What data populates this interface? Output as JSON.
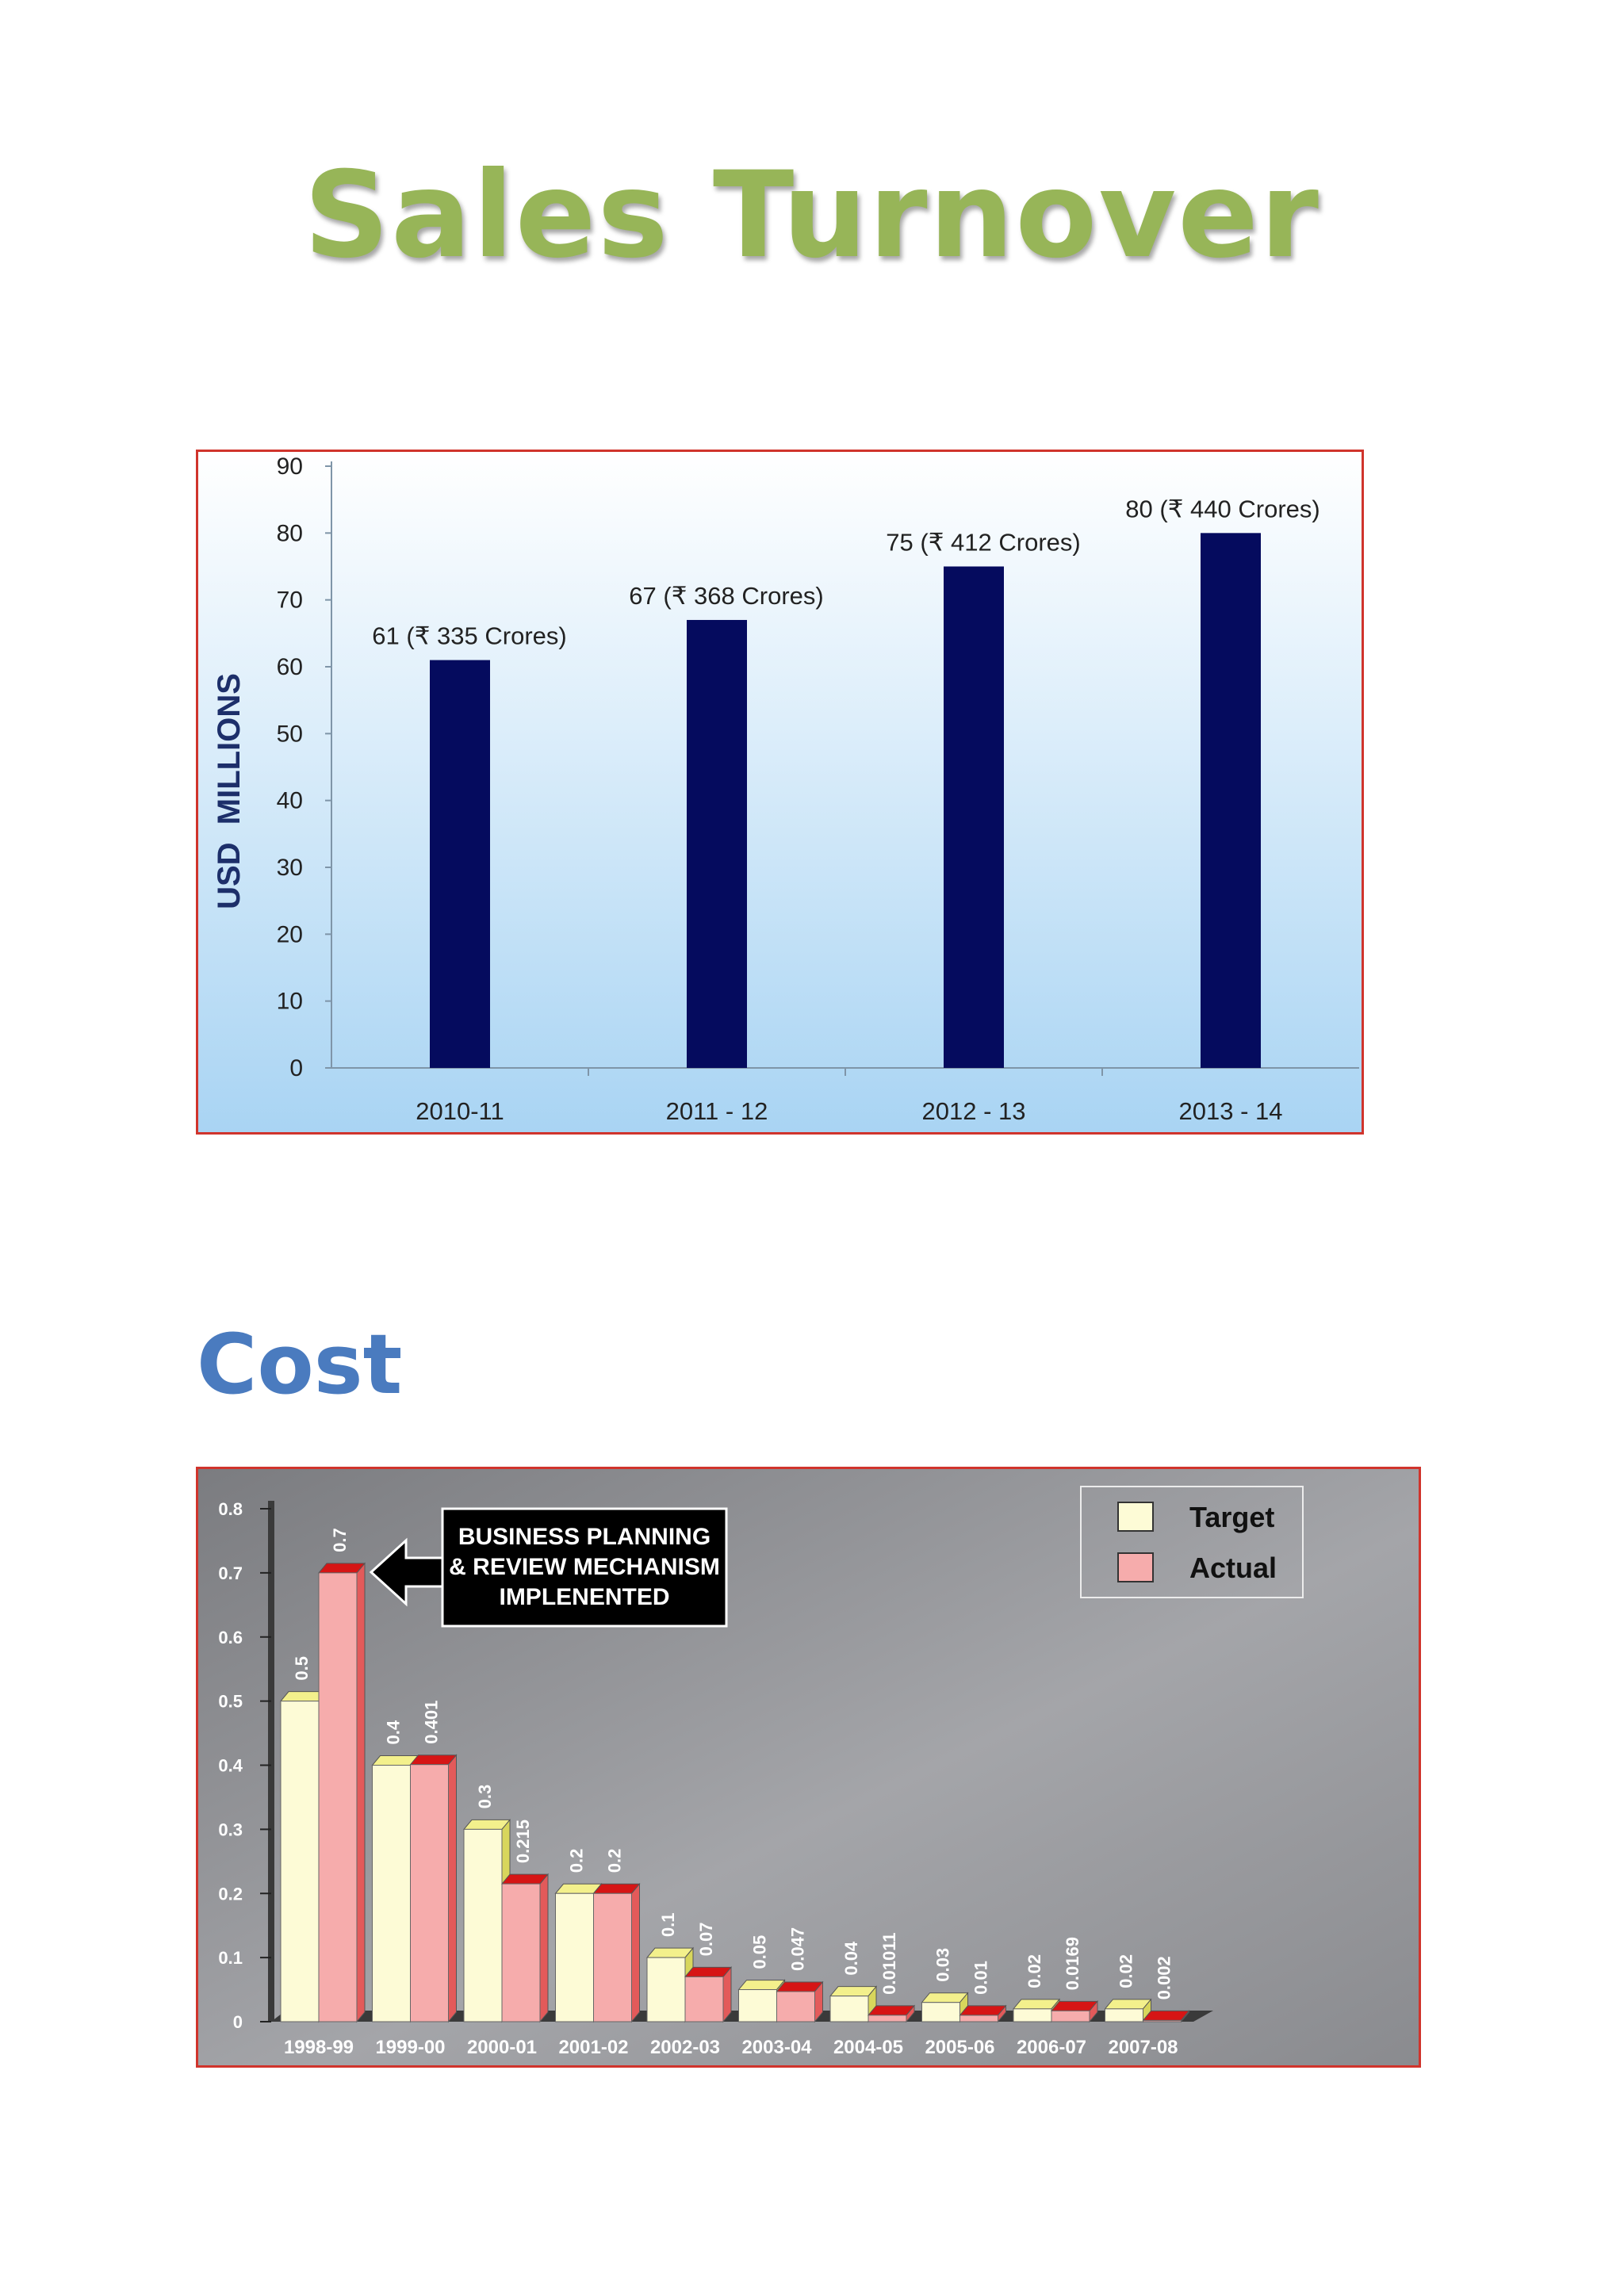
{
  "page": {
    "title": "Sales Turnover",
    "section_title": "Cost"
  },
  "colors": {
    "title": "#97b558",
    "section_title": "#4a7bbf",
    "frame": "#d0342c",
    "sales_bar": "#050b5e",
    "sales_bg_top": "#ffffff",
    "sales_bg_bottom": "#a9d4f3",
    "cost_bg": "#8c8d91",
    "target_face": "#fdfbd6",
    "target_top": "#f3f08c",
    "target_side": "#d8d65c",
    "actual_face": "#f6acac",
    "actual_top": "#d61515",
    "actual_side": "#e35a5a"
  },
  "chart_data": [
    {
      "type": "bar",
      "title": "",
      "xlabel": "",
      "ylabel": "USD  MILLIONS",
      "ylim": [
        0,
        90
      ],
      "yticks": [
        0,
        10,
        20,
        30,
        40,
        50,
        60,
        70,
        80,
        90
      ],
      "categories": [
        "2010-11",
        "2011 - 12",
        "2012 - 13",
        "2013 - 14"
      ],
      "values": [
        61,
        67,
        75,
        80
      ],
      "data_labels": [
        "61 (₹ 335 Crores)",
        "67 (₹ 368 Crores)",
        "75  (₹ 412 Crores)",
        "80  (₹ 440 Crores)"
      ],
      "grid": false,
      "legend": "none"
    },
    {
      "type": "bar",
      "title": "",
      "xlabel": "",
      "ylabel": "",
      "ylim": [
        0,
        0.8
      ],
      "yticks": [
        "0",
        "0.1",
        "0.2",
        "0.3",
        "0.4",
        "0.5",
        "0.6",
        "0.7",
        "0.8"
      ],
      "categories": [
        "1998-99",
        "1999-00",
        "2000-01",
        "2001-02",
        "2002-03",
        "2003-04",
        "2004-05",
        "2005-06",
        "2006-07",
        "2007-08"
      ],
      "series": [
        {
          "name": "Target",
          "values": [
            0.5,
            0.4,
            0.3,
            0.2,
            0.1,
            0.05,
            0.04,
            0.03,
            0.02,
            0.02
          ],
          "labels": [
            "0.5",
            "0.4",
            "0.3",
            "0.2",
            "0.1",
            "0.05",
            "0.04",
            "0.03",
            "0.02",
            "0.02"
          ]
        },
        {
          "name": "Actual",
          "values": [
            0.7,
            0.401,
            0.215,
            0.2,
            0.07,
            0.047,
            0.01011,
            0.01,
            0.0169,
            0.002
          ],
          "labels": [
            "0.7",
            "0.401",
            "0.215",
            "0.2",
            "0.07",
            "0.047",
            "0.01011",
            "0.01",
            "0.0169",
            "0.002"
          ]
        }
      ],
      "annotation": [
        "BUSINESS PLANNING",
        "& REVIEW MECHANISM",
        "IMPLENENTED"
      ],
      "legend": "top-right",
      "grid": false
    }
  ]
}
